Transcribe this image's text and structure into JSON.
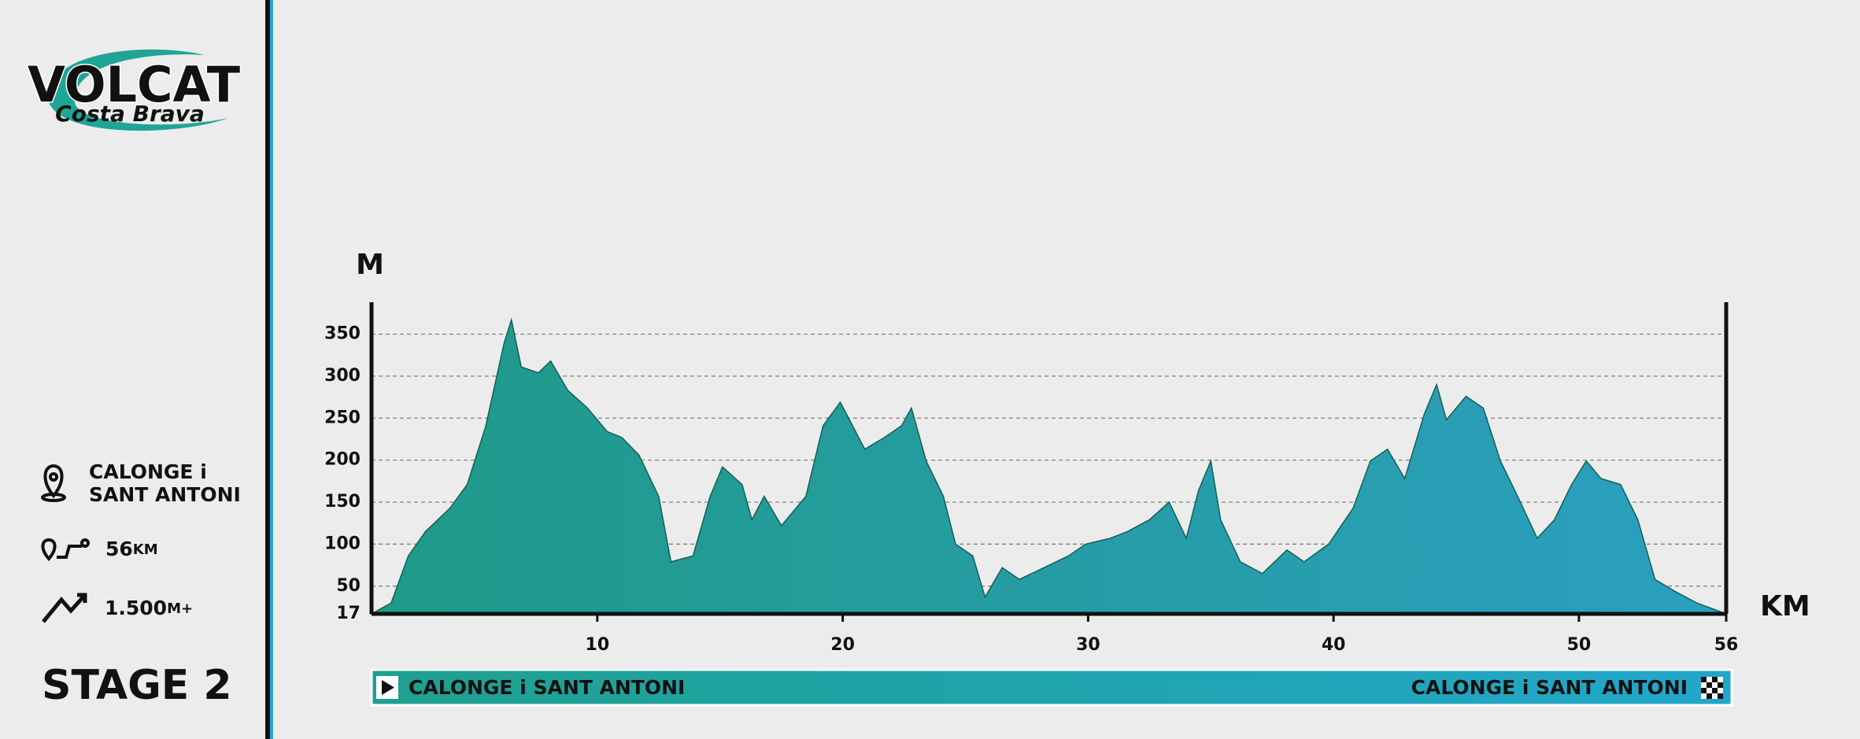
{
  "logo": {
    "name": "VOLCAT",
    "subtitle": "Costa Brava"
  },
  "info": {
    "location": [
      "CALONGE i",
      "SANT ANTONI"
    ],
    "distance": {
      "value": "56",
      "unit": "KM"
    },
    "elevation": {
      "value": "1.500",
      "unit": "M+"
    },
    "stage": "STAGE 2"
  },
  "route": {
    "start": "CALONGE i SANT ANTONI",
    "finish": "CALONGE i SANT ANTONI"
  },
  "chart_data": {
    "type": "area",
    "y_label": "M",
    "x_label": "KM",
    "x": [
      0.8,
      1.6,
      2.3,
      3.0,
      4.0,
      4.7,
      5.45,
      6.2,
      6.5,
      6.9,
      7.6,
      8.1,
      8.8,
      9.6,
      10.4,
      11.0,
      11.7,
      12.5,
      13.0,
      13.9,
      14.6,
      15.1,
      15.9,
      16.3,
      16.8,
      17.5,
      18.5,
      19.2,
      19.9,
      20.4,
      20.9,
      21.7,
      22.4,
      22.8,
      23.4,
      24.1,
      24.6,
      25.3,
      25.8,
      26.5,
      27.2,
      28.2,
      29.2,
      29.9,
      30.9,
      31.6,
      32.5,
      33.3,
      34.0,
      34.5,
      35.0,
      35.4,
      36.2,
      37.1,
      38.1,
      38.8,
      39.8,
      40.8,
      41.5,
      42.2,
      42.9,
      43.7,
      44.2,
      44.6,
      45.4,
      46.1,
      46.8,
      47.5,
      48.3,
      49.0,
      49.7,
      50.3,
      50.9,
      51.7,
      52.4,
      53.1,
      53.9,
      54.8,
      56
    ],
    "values": [
      17,
      30,
      86,
      115,
      143,
      171,
      240,
      339,
      367,
      311,
      304,
      318,
      283,
      262,
      234,
      227,
      206,
      157,
      79,
      86,
      157,
      192,
      171,
      129,
      157,
      122,
      157,
      241,
      269,
      241,
      213,
      227,
      241,
      262,
      199,
      157,
      100,
      86,
      37,
      72,
      58,
      72,
      86,
      100,
      107,
      115,
      129,
      150,
      107,
      164,
      199,
      129,
      79,
      65,
      93,
      79,
      100,
      143,
      199,
      213,
      178,
      255,
      290,
      248,
      276,
      262,
      199,
      157,
      107,
      129,
      171,
      199,
      178,
      171,
      129,
      58,
      44,
      30,
      17
    ],
    "colors": [
      "#1f9a88",
      "#2b9fc0"
    ],
    "xlim": [
      0.8,
      56
    ],
    "xticks": [
      10,
      20,
      30,
      40,
      50,
      56
    ],
    "ylim": [
      17,
      388
    ],
    "yticks": [
      17,
      50,
      100,
      150,
      200,
      250,
      300,
      350
    ],
    "grid": true
  }
}
